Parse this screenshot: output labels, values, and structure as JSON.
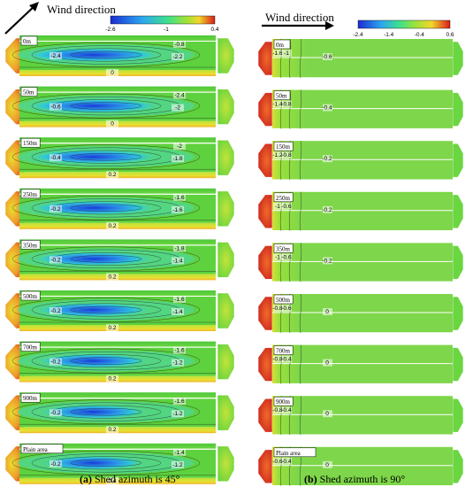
{
  "left": {
    "header": "Wind direction",
    "colorbar": {
      "ticks": [
        "-2.6",
        "-1",
        "0.4"
      ],
      "min": -2.6,
      "max": 0.4
    },
    "caption_bold": "(a)",
    "caption_text": " Shed azimuth is 45°",
    "panels": [
      {
        "label": "0m",
        "contours": [
          "-2.4",
          "-0.8",
          "-2.2",
          "0"
        ]
      },
      {
        "label": "50m",
        "contours": [
          "-0.6",
          "-2.4",
          "-2",
          "0"
        ]
      },
      {
        "label": "150m",
        "contours": [
          "-0.4",
          "-2",
          "-1.8",
          "0.2"
        ]
      },
      {
        "label": "250m",
        "contours": [
          "-0.2",
          "-1.6",
          "-1.6",
          "0.2"
        ]
      },
      {
        "label": "350m",
        "contours": [
          "-0.2",
          "-1.8",
          "-1.4",
          "0.2"
        ]
      },
      {
        "label": "500m",
        "contours": [
          "-0.2",
          "-1.6",
          "-1.4",
          "0.2"
        ]
      },
      {
        "label": "700m",
        "contours": [
          "-0.2",
          "-1.6",
          "-1.2",
          "0.2"
        ]
      },
      {
        "label": "900m",
        "contours": [
          "-0.2",
          "-1.6",
          "-1.2",
          "0.2"
        ]
      },
      {
        "label": "Plain area",
        "contours": [
          "-0.2",
          "-1.4",
          "-1.2",
          "0.4"
        ]
      }
    ]
  },
  "right": {
    "header": "Wind direction",
    "colorbar": {
      "ticks": [
        "-2.4",
        "-1.4",
        "-0.4",
        "0.6"
      ],
      "min": -2.4,
      "max": 0.6
    },
    "caption_bold": "(b)",
    "caption_text": " Shed azimuth is 90°",
    "panels": [
      {
        "label": "0m",
        "contours": [
          "-1.6",
          "-1",
          "-0.6"
        ]
      },
      {
        "label": "50m",
        "contours": [
          "-1.4",
          "-0.8",
          "-0.4"
        ]
      },
      {
        "label": "150m",
        "contours": [
          "-1.2",
          "-0.8",
          "-0.2"
        ]
      },
      {
        "label": "250m",
        "contours": [
          "-1",
          "-0.6",
          "-0.2"
        ]
      },
      {
        "label": "350m",
        "contours": [
          "-1",
          "-0.6",
          "-0.2"
        ]
      },
      {
        "label": "500m",
        "contours": [
          "-0.8",
          "-0.6",
          "0"
        ]
      },
      {
        "label": "700m",
        "contours": [
          "-0.8",
          "-0.4",
          "0"
        ]
      },
      {
        "label": "900m",
        "contours": [
          "-0.8",
          "-0.4",
          "0"
        ]
      },
      {
        "label": "Plain area",
        "contours": [
          "-0.6",
          "-0.4",
          "0"
        ]
      }
    ]
  },
  "colors": {
    "field_green": "#5ed23e",
    "field_light": "#8ee04e",
    "contour_blue_deep": "#2a4ee8",
    "contour_cyan": "#2ec8e8",
    "edge_yellow": "#e8e830",
    "edge_orange": "#f08a2a",
    "edge_red": "#d42a1a"
  }
}
